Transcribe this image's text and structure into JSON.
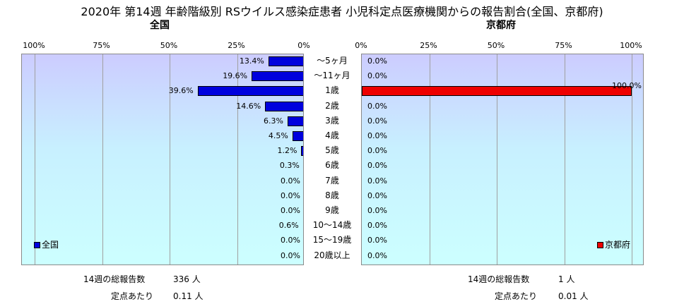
{
  "title": "2020年 第14週 年齢階級別 RSウイルス感染症患者 小児科定点医療機関からの報告割合(全国、京都府)",
  "panels": {
    "national": {
      "subtitle": "全国",
      "legend": "全国",
      "color": "#0000dd"
    },
    "kyoto": {
      "subtitle": "京都府",
      "legend": "京都府",
      "color": "#ee0000"
    }
  },
  "chart_data": [
    {
      "type": "bar",
      "orientation": "horizontal",
      "direction": "right-to-left",
      "title": "全国",
      "xlim": [
        0,
        100
      ],
      "xticks": [
        "100%",
        "75%",
        "50%",
        "25%",
        "0%"
      ],
      "categories": [
        "～5ヶ月",
        "～11ヶ月",
        "1歳",
        "2歳",
        "3歳",
        "4歳",
        "5歳",
        "6歳",
        "7歳",
        "8歳",
        "9歳",
        "10～14歳",
        "15～19歳",
        "20歳以上"
      ],
      "values": [
        13.4,
        19.6,
        39.6,
        14.6,
        6.3,
        4.5,
        1.2,
        0.3,
        0.0,
        0.0,
        0.0,
        0.6,
        0.0,
        0.0
      ],
      "labels": [
        "13.4%",
        "19.6%",
        "39.6%",
        "14.6%",
        "6.3%",
        "4.5%",
        "1.2%",
        "0.3%",
        "0.0%",
        "0.0%",
        "0.0%",
        "0.6%",
        "0.0%",
        "0.0%"
      ],
      "legend": "bottom-left",
      "grid": true
    },
    {
      "type": "bar",
      "orientation": "horizontal",
      "direction": "left-to-right",
      "title": "京都府",
      "xlim": [
        0,
        100
      ],
      "xticks": [
        "0%",
        "25%",
        "50%",
        "75%",
        "100%"
      ],
      "categories": [
        "～5ヶ月",
        "～11ヶ月",
        "1歳",
        "2歳",
        "3歳",
        "4歳",
        "5歳",
        "6歳",
        "7歳",
        "8歳",
        "9歳",
        "10～14歳",
        "15～19歳",
        "20歳以上"
      ],
      "values": [
        0.0,
        0.0,
        100.0,
        0.0,
        0.0,
        0.0,
        0.0,
        0.0,
        0.0,
        0.0,
        0.0,
        0.0,
        0.0,
        0.0
      ],
      "labels": [
        "0.0%",
        "0.0%",
        "100.0%",
        "0.0%",
        "0.0%",
        "0.0%",
        "0.0%",
        "0.0%",
        "0.0%",
        "0.0%",
        "0.0%",
        "0.0%",
        "0.0%",
        "0.0%"
      ],
      "legend": "bottom-right",
      "grid": true
    }
  ],
  "footer": {
    "national": {
      "total_label": "14週の総報告数",
      "total_value": "336 人",
      "per_label": "定点あたり",
      "per_value": "0.11 人"
    },
    "kyoto": {
      "total_label": "14週の総報告数",
      "total_value": "1 人",
      "per_label": "定点あたり",
      "per_value": "0.01 人"
    }
  }
}
